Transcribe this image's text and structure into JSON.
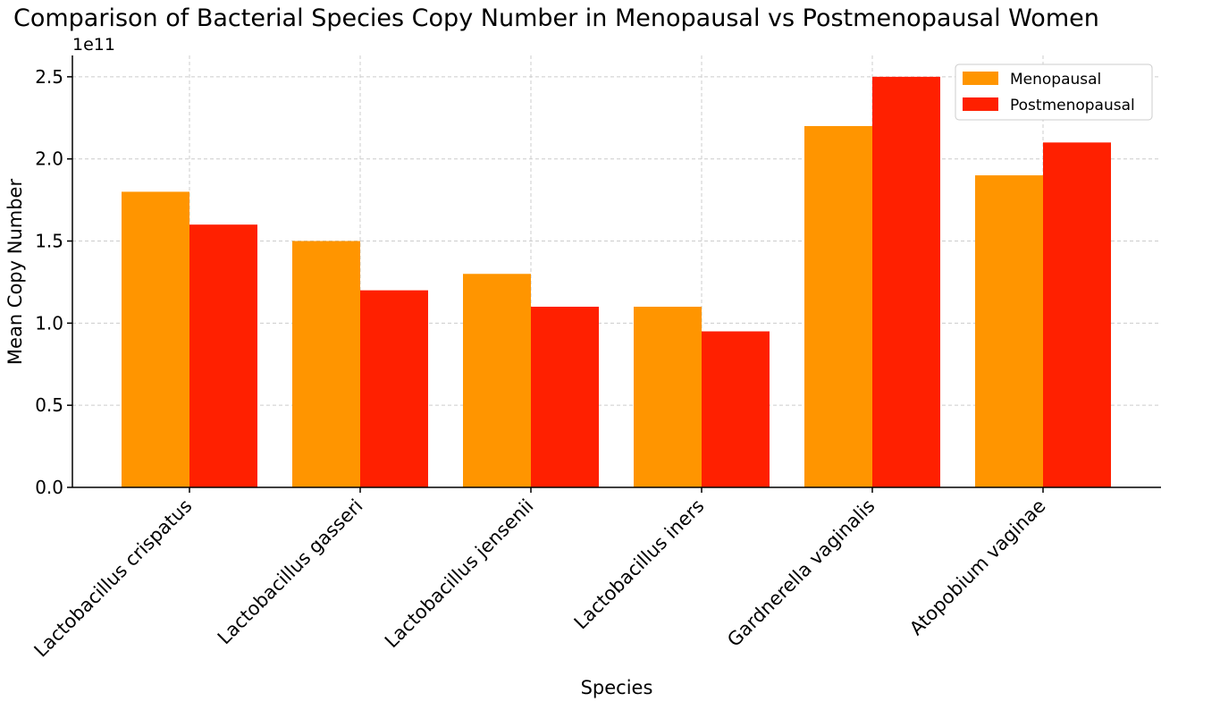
{
  "chart_data": {
    "type": "bar",
    "title": "Comparison of Bacterial Species Copy Number in Menopausal vs Postmenopausal Women",
    "xlabel": "Species",
    "ylabel": "Mean Copy Number",
    "y_offset_label": "1e11",
    "categories": [
      "Lactobacillus crispatus",
      "Lactobacillus gasseri",
      "Lactobacillus jensenii",
      "Lactobacillus iners",
      "Gardnerella vaginalis",
      "Atopobium vaginae"
    ],
    "series": [
      {
        "name": "Menopausal",
        "color": "#FF9500",
        "values": [
          1.8,
          1.5,
          1.3,
          1.1,
          2.2,
          1.9
        ]
      },
      {
        "name": "Postmenopausal",
        "color": "#FF2000",
        "values": [
          1.6,
          1.2,
          1.1,
          0.95,
          2.5,
          2.1
        ]
      }
    ],
    "yticks": [
      "0.0",
      "0.5",
      "1.0",
      "1.5",
      "2.0",
      "2.5"
    ],
    "ylim": [
      0,
      2.63
    ],
    "grid": true,
    "legend_position": "top-right"
  }
}
